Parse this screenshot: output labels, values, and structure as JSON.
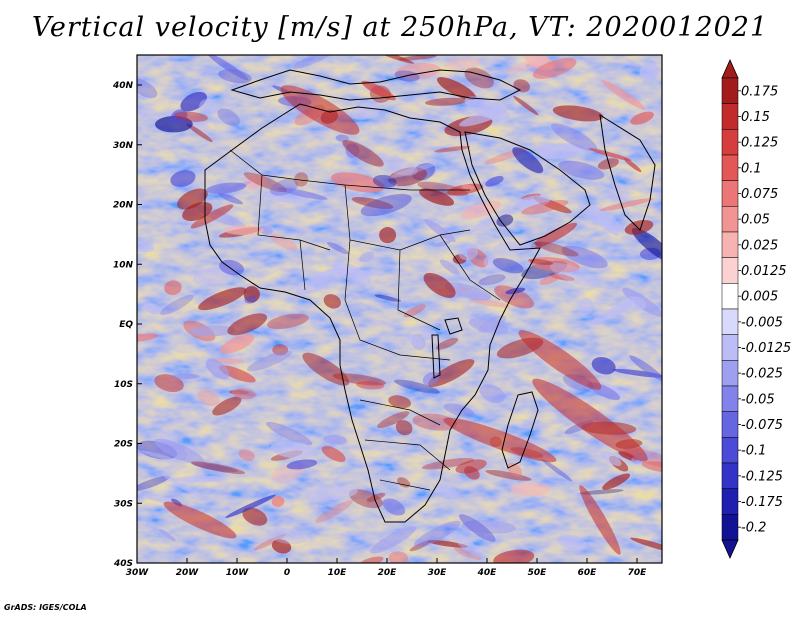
{
  "title": "Vertical velocity [m/s] at 250hPa, VT: 2020012021",
  "credit": "GrADS: IGES/COLA",
  "axes": {
    "lon_labels": [
      "30W",
      "20W",
      "10W",
      "0",
      "10E",
      "20E",
      "30E",
      "40E",
      "50E",
      "60E",
      "70E"
    ],
    "lat_labels": [
      "40N",
      "30N",
      "20N",
      "10N",
      "EQ",
      "10S",
      "20S",
      "30S",
      "40S"
    ]
  },
  "colorbar": {
    "levels": [
      "0.175",
      "0.15",
      "0.125",
      "0.1",
      "0.075",
      "0.05",
      "0.025",
      "0.0125",
      "0.005",
      "-0.005",
      "-0.0125",
      "-0.025",
      "-0.05",
      "-0.075",
      "-0.1",
      "-0.125",
      "-0.175",
      "-0.2"
    ],
    "colors": [
      "#a31c1c",
      "#c22b2b",
      "#d63e3e",
      "#e35757",
      "#ec7575",
      "#f39494",
      "#f7b2b2",
      "#fbd1d1",
      "#ffffff",
      "#d9d9fb",
      "#bcbcf6",
      "#9f9ff0",
      "#8282ea",
      "#6666e2",
      "#4b4bd8",
      "#3333c8",
      "#2020b0",
      "#121294"
    ]
  }
}
